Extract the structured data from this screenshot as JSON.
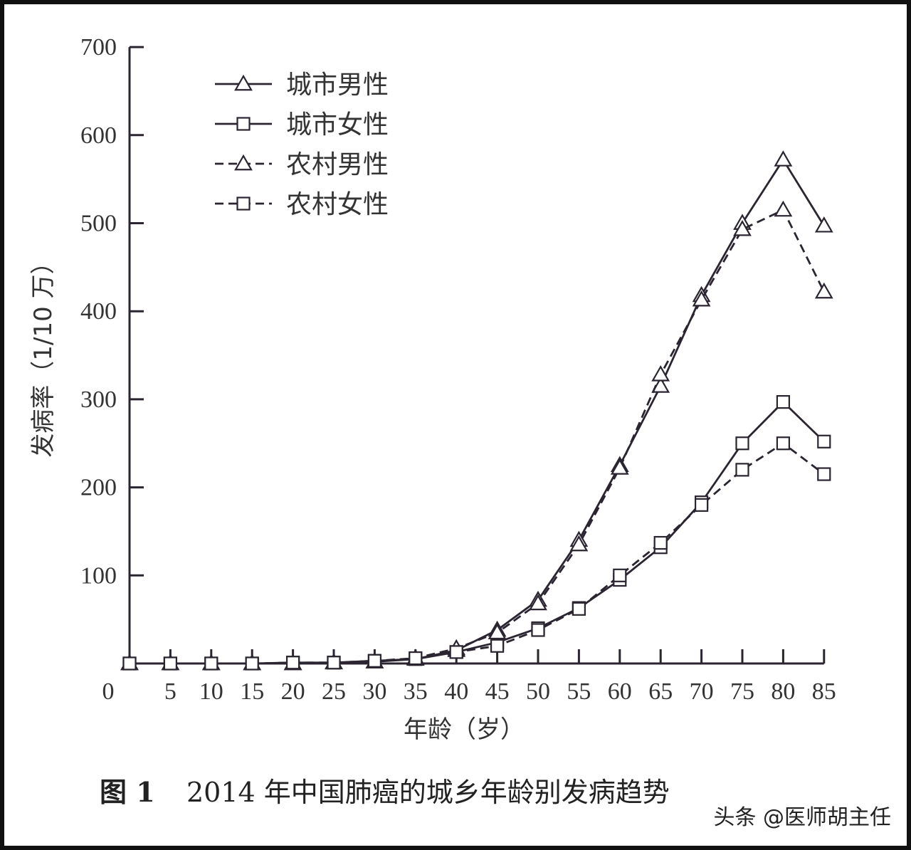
{
  "chart_data": {
    "type": "line",
    "title": "2014 年中国肺癌的城乡年龄别发病趋势",
    "caption_prefix": "图 1",
    "xlabel": "年龄（岁）",
    "ylabel": "发病率（1/10 万）",
    "ylim": [
      0,
      700
    ],
    "yticks": [
      0,
      100,
      200,
      300,
      400,
      500,
      600,
      700
    ],
    "ytick_labels": [
      "",
      "100",
      "200",
      "300",
      "400",
      "500",
      "600",
      "700"
    ],
    "xtick_labels": [
      "0",
      "5",
      "10",
      "15",
      "20",
      "25",
      "30",
      "35",
      "40",
      "45",
      "50",
      "55",
      "60",
      "65",
      "70",
      "75",
      "80",
      "85"
    ],
    "x": [
      0,
      5,
      10,
      15,
      20,
      25,
      30,
      35,
      40,
      45,
      50,
      55,
      60,
      65,
      70,
      75,
      80,
      85
    ],
    "grid": false,
    "legend_position": "top-left",
    "series": [
      {
        "name": "城市男性",
        "marker": "triangle",
        "line": "solid",
        "values": [
          0,
          0,
          0,
          0,
          0,
          1,
          2,
          5,
          15,
          38,
          72,
          140,
          225,
          315,
          418,
          500,
          572,
          497
        ]
      },
      {
        "name": "城市女性",
        "marker": "square",
        "line": "solid",
        "values": [
          0,
          0,
          0,
          0,
          1,
          1,
          3,
          5,
          13,
          24,
          40,
          63,
          95,
          132,
          183,
          250,
          297,
          252
        ]
      },
      {
        "name": "农村男性",
        "marker": "triangle",
        "line": "dashed",
        "values": [
          0,
          0,
          0,
          0,
          0,
          1,
          2,
          6,
          17,
          35,
          68,
          135,
          222,
          328,
          413,
          493,
          515,
          422
        ]
      },
      {
        "name": "农村女性",
        "marker": "square",
        "line": "dashed",
        "values": [
          0,
          0,
          0,
          0,
          1,
          1,
          3,
          6,
          13,
          20,
          38,
          62,
          100,
          137,
          180,
          220,
          250,
          215
        ]
      }
    ]
  },
  "watermark": "头条 @医师胡主任"
}
